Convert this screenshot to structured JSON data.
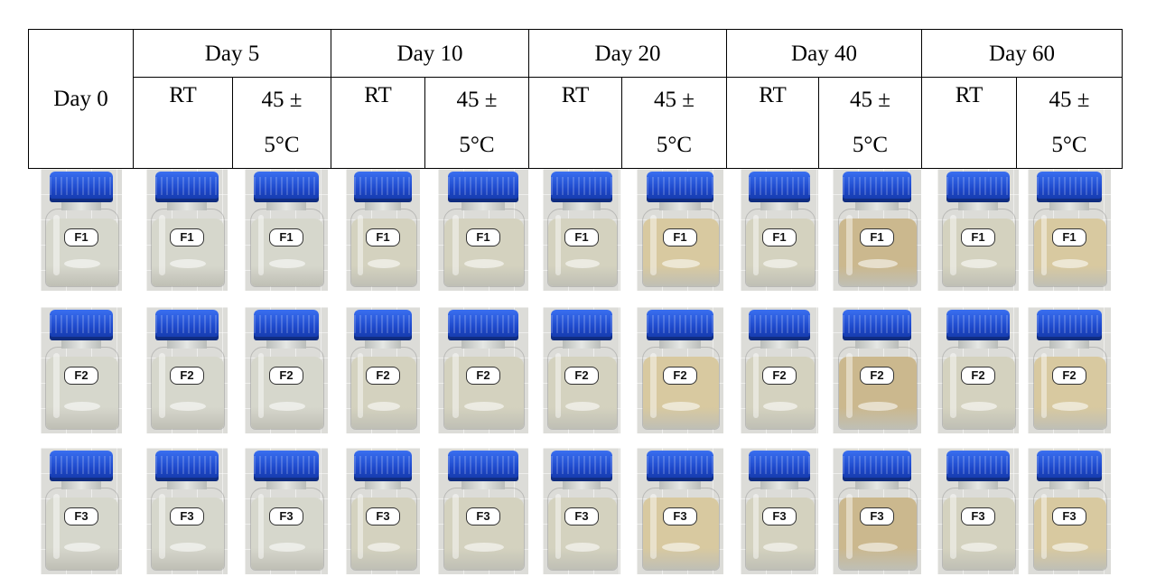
{
  "header": {
    "day0": "Day 0",
    "days": [
      "Day 5",
      "Day 10",
      "Day 20",
      "Day 40",
      "Day 60"
    ],
    "rt": "RT",
    "hot_line1": "45 ±",
    "hot_line2": "5°C"
  },
  "rows": [
    "F1",
    "F2",
    "F3"
  ],
  "colors": {
    "cap": "#1c46c8",
    "clear": "#d6d7cc",
    "slightly_turbid": "#d4d2bf",
    "yellowish": "#d8c9a0",
    "amber": "#cbb88e"
  },
  "samples": [
    {
      "col": "Day 0",
      "tint": "clear"
    },
    {
      "col": "Day 5 RT",
      "tint": "clear"
    },
    {
      "col": "Day 5 45±5°C",
      "tint": "clear"
    },
    {
      "col": "Day 10 RT",
      "tint": "slightly_turbid"
    },
    {
      "col": "Day 10 45±5°C",
      "tint": "slightly_turbid"
    },
    {
      "col": "Day 20 RT",
      "tint": "slightly_turbid"
    },
    {
      "col": "Day 20 45±5°C",
      "tint": "yellowish"
    },
    {
      "col": "Day 40 RT",
      "tint": "slightly_turbid"
    },
    {
      "col": "Day 40 45±5°C",
      "tint": "amber"
    },
    {
      "col": "Day 60 RT",
      "tint": "slightly_turbid"
    },
    {
      "col": "Day 60 45±5°C",
      "tint": "yellowish"
    }
  ]
}
